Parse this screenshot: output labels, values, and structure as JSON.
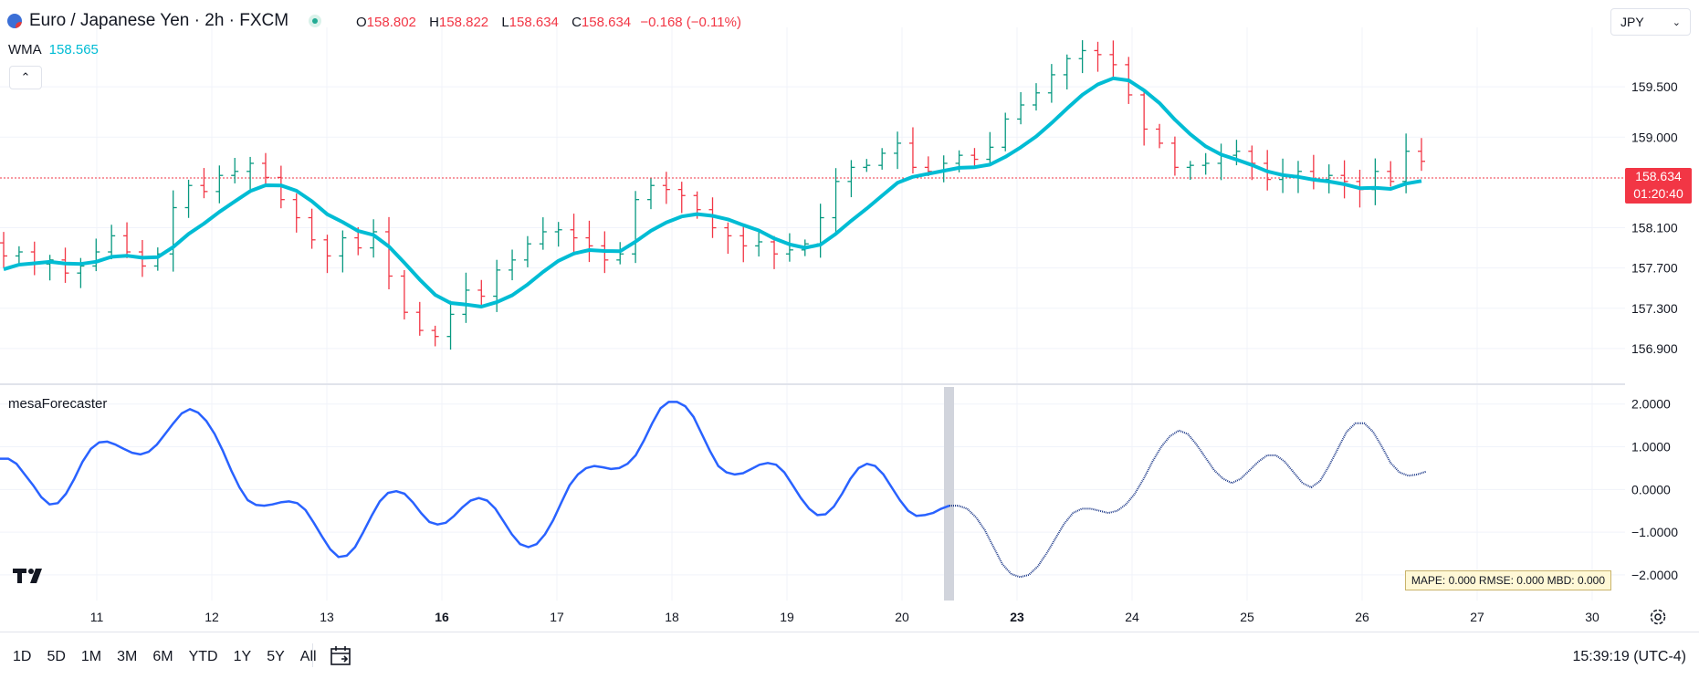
{
  "header": {
    "symbol": "Euro / Japanese Yen · 2h · FXCM",
    "ohlc": {
      "o_label": "O",
      "o": "158.802",
      "h_label": "H",
      "h": "158.822",
      "l_label": "L",
      "l": "158.634",
      "c_label": "C",
      "c": "158.634",
      "change": "−0.168 (−0.11%)"
    },
    "indicator_name": "WMA",
    "indicator_value": "158.565",
    "currency": "JPY"
  },
  "price_badge": {
    "price": "158.634",
    "countdown": "01:20:40"
  },
  "oscillator": {
    "name": "mesaForecaster",
    "stats": "MAPE: 0.000  RMSE: 0.000  MBD: 0.000"
  },
  "footer": {
    "ranges": [
      "1D",
      "5D",
      "1M",
      "3M",
      "6M",
      "YTD",
      "1Y",
      "5Y",
      "All"
    ],
    "clock": "15:39:19 (UTC-4)"
  },
  "colors": {
    "up": "#089981",
    "down": "#f23645",
    "wma": "#00bcd4",
    "osc": "#2962ff",
    "osc_forecast": "#1e3a8a"
  },
  "icons": [
    "search-flag-icon",
    "status-dot-icon",
    "chevron-up-icon",
    "chevron-down-icon",
    "tradingview-logo-icon",
    "calendar-icon",
    "gear-icon"
  ],
  "chart_data": [
    {
      "type": "ohlc",
      "title": "Euro / Japanese Yen · 2h · FXCM",
      "x_ticks": [
        "11",
        "12",
        "13",
        "16",
        "17",
        "18",
        "19",
        "20",
        "23",
        "24",
        "25",
        "26",
        "27",
        "30"
      ],
      "y_ticks": [
        "159.500",
        "159.000",
        "158.100",
        "157.700",
        "157.300",
        "156.900"
      ],
      "ylim": [
        156.6,
        160.0
      ],
      "last_price": 158.634,
      "close": [
        157.82,
        157.86,
        157.74,
        157.78,
        157.65,
        157.72,
        157.86,
        158.02,
        157.86,
        157.72,
        157.84,
        158.3,
        158.52,
        158.46,
        158.62,
        158.66,
        158.74,
        158.6,
        158.38,
        158.2,
        157.98,
        157.82,
        158.0,
        157.9,
        158.06,
        157.62,
        157.26,
        157.08,
        157.02,
        157.24,
        157.48,
        157.42,
        157.68,
        157.78,
        157.94,
        158.06,
        158.08,
        158.0,
        157.92,
        157.78,
        157.84,
        158.38,
        158.52,
        158.48,
        158.42,
        158.28,
        158.1,
        158.02,
        157.92,
        157.96,
        157.84,
        157.88,
        157.94,
        158.2,
        158.56,
        158.7,
        158.72,
        158.84,
        158.94,
        158.7,
        158.66,
        158.74,
        158.82,
        158.78,
        158.9,
        159.18,
        159.32,
        159.44,
        159.62,
        159.78,
        159.86,
        159.82,
        159.72,
        159.42,
        159.08,
        158.94,
        158.7,
        158.72,
        158.74,
        158.82,
        158.86,
        158.74,
        158.58,
        158.62,
        158.66,
        158.58,
        158.62,
        158.56,
        158.48,
        158.66,
        158.56,
        158.86,
        158.76
      ],
      "wma_end": 158.565,
      "series": [
        {
          "name": "WMA"
        }
      ]
    },
    {
      "type": "line",
      "title": "mesaForecaster",
      "y_ticks": [
        "2.0000",
        "1.0000",
        "0.0000",
        "−1.0000",
        "−2.0000"
      ],
      "ylim": [
        -2.6,
        2.4
      ],
      "history": [
        0.72,
        0.72,
        0.6,
        0.35,
        0.1,
        -0.18,
        -0.35,
        -0.32,
        -0.1,
        0.25,
        0.65,
        0.95,
        1.1,
        1.12,
        1.05,
        0.95,
        0.86,
        0.82,
        0.88,
        1.05,
        1.3,
        1.55,
        1.78,
        1.88,
        1.8,
        1.6,
        1.3,
        0.9,
        0.45,
        0.05,
        -0.25,
        -0.36,
        -0.38,
        -0.35,
        -0.3,
        -0.28,
        -0.32,
        -0.48,
        -0.78,
        -1.1,
        -1.4,
        -1.58,
        -1.55,
        -1.35,
        -1.0,
        -0.62,
        -0.28,
        -0.08,
        -0.04,
        -0.1,
        -0.3,
        -0.55,
        -0.76,
        -0.82,
        -0.78,
        -0.62,
        -0.42,
        -0.26,
        -0.2,
        -0.26,
        -0.45,
        -0.75,
        -1.05,
        -1.28,
        -1.35,
        -1.28,
        -1.05,
        -0.72,
        -0.3,
        0.1,
        0.35,
        0.5,
        0.55,
        0.52,
        0.48,
        0.5,
        0.6,
        0.8,
        1.15,
        1.55,
        1.9,
        2.05,
        2.05,
        1.95,
        1.7,
        1.3,
        0.9,
        0.55,
        0.4,
        0.35,
        0.38,
        0.48,
        0.58,
        0.62,
        0.58,
        0.4,
        0.1,
        -0.2,
        -0.45,
        -0.6,
        -0.58,
        -0.4,
        -0.1,
        0.25,
        0.5,
        0.6,
        0.55,
        0.35,
        0.05,
        -0.25,
        -0.5,
        -0.62,
        -0.6,
        -0.55,
        -0.45,
        -0.38
      ],
      "forecast": [
        -0.38,
        -0.38,
        -0.45,
        -0.65,
        -0.95,
        -1.35,
        -1.75,
        -1.98,
        -2.05,
        -2.0,
        -1.8,
        -1.5,
        -1.15,
        -0.8,
        -0.55,
        -0.45,
        -0.45,
        -0.5,
        -0.55,
        -0.5,
        -0.35,
        -0.1,
        0.25,
        0.65,
        1.0,
        1.25,
        1.38,
        1.3,
        1.05,
        0.75,
        0.45,
        0.25,
        0.15,
        0.25,
        0.45,
        0.65,
        0.8,
        0.8,
        0.65,
        0.4,
        0.15,
        0.05,
        0.2,
        0.55,
        0.95,
        1.35,
        1.55,
        1.55,
        1.35,
        1.0,
        0.62,
        0.4,
        0.32,
        0.35,
        0.42
      ],
      "series": [
        {
          "name": "mesaForecaster"
        }
      ]
    }
  ]
}
